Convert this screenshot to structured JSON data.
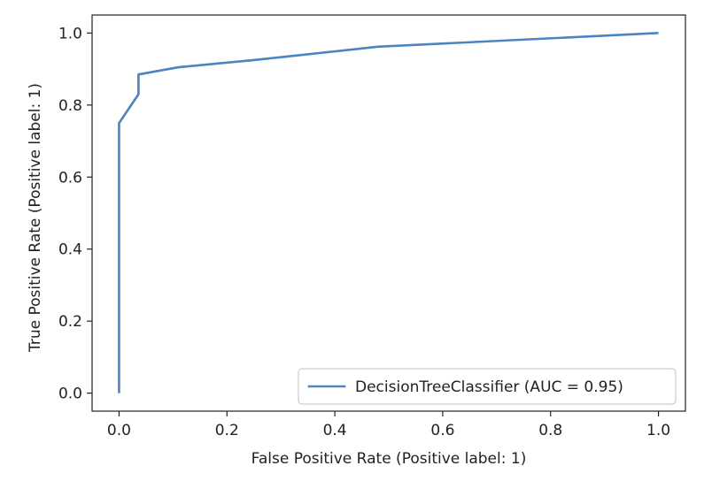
{
  "chart_data": {
    "type": "line",
    "title": "",
    "xlabel": "False Positive Rate (Positive label: 1)",
    "ylabel": "True Positive Rate (Positive label: 1)",
    "xlim": [
      -0.05,
      1.05
    ],
    "ylim": [
      -0.05,
      1.05
    ],
    "xticks": [
      "0.0",
      "0.2",
      "0.4",
      "0.6",
      "0.8",
      "1.0"
    ],
    "yticks": [
      "0.0",
      "0.2",
      "0.4",
      "0.6",
      "0.8",
      "1.0"
    ],
    "grid": false,
    "legend_position": "lower-right",
    "series": [
      {
        "name": "DecisionTreeClassifier (AUC = 0.95)",
        "color": "#4b84c0",
        "x": [
          0.0,
          0.0,
          0.036,
          0.036,
          0.11,
          0.25,
          0.48,
          1.0
        ],
        "y": [
          0.0,
          0.75,
          0.83,
          0.885,
          0.905,
          0.925,
          0.962,
          1.0
        ]
      }
    ]
  }
}
